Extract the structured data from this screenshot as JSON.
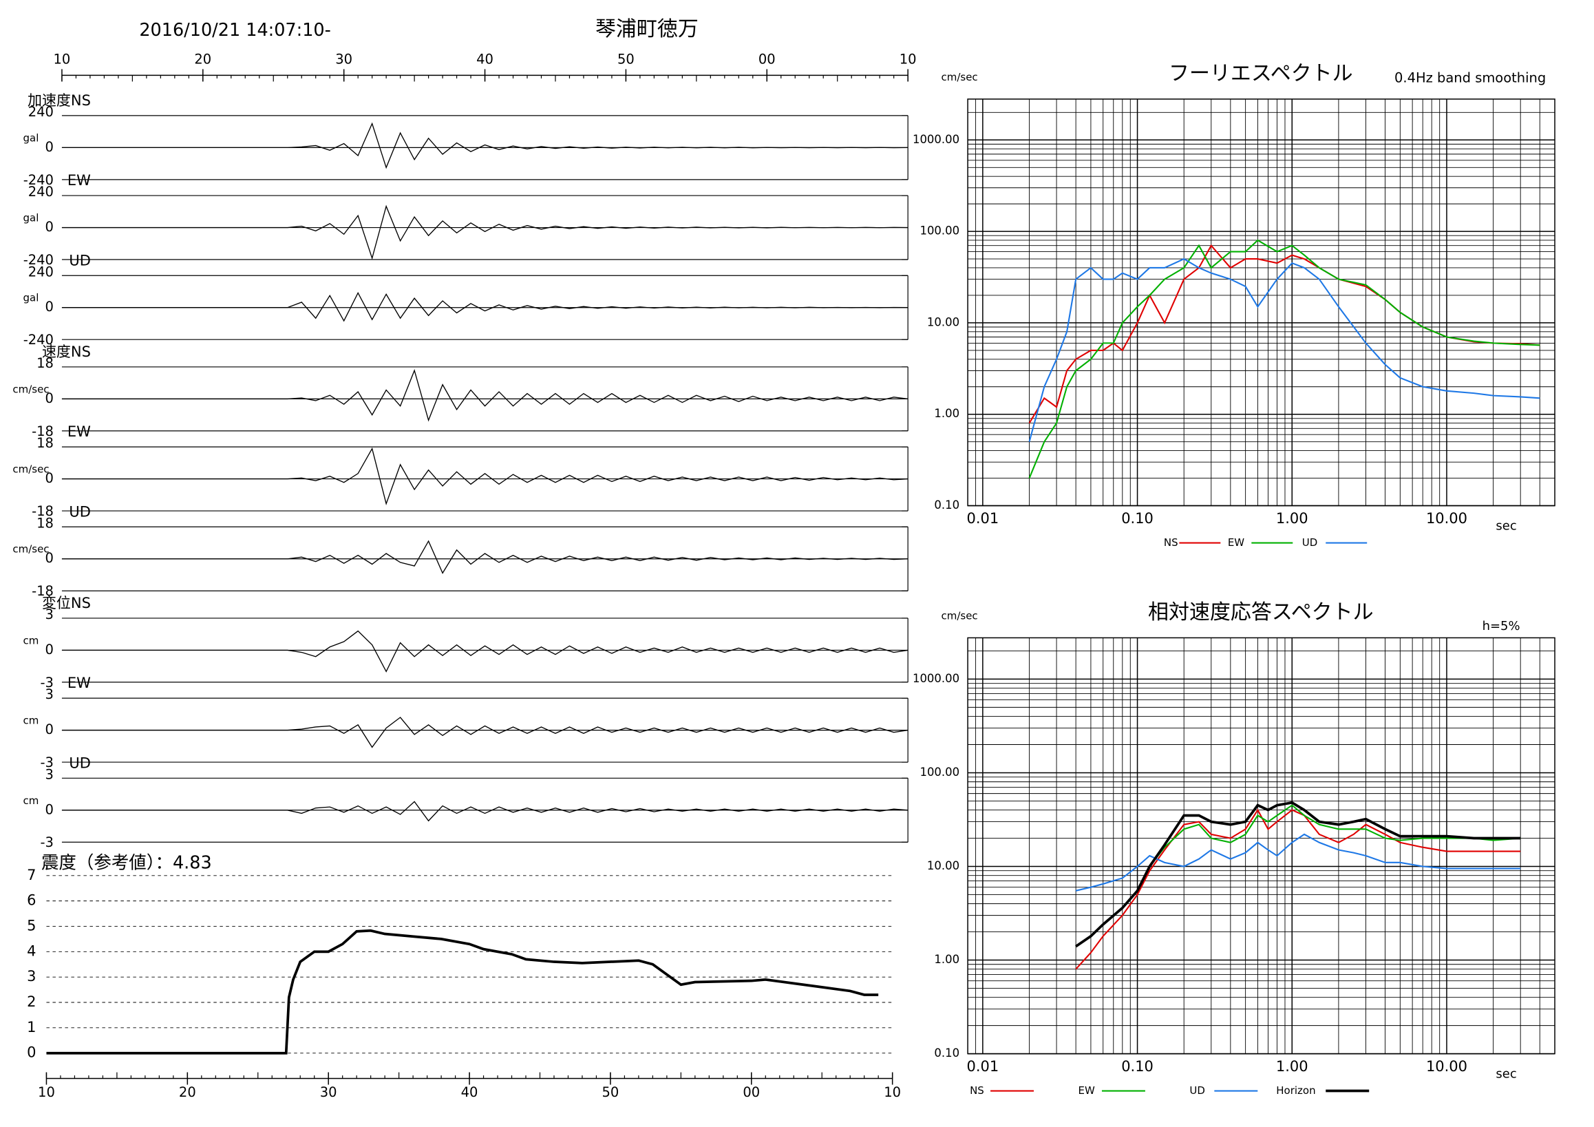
{
  "chart_data": [
    {
      "type": "waveform",
      "header": "2016/10/21 14:07:10-",
      "title": "琴浦町徳万",
      "xlim": [
        10,
        70
      ],
      "xticks": [
        10,
        20,
        30,
        40,
        50,
        {
          "value": 60,
          "label": "00"
        },
        {
          "value": 70,
          "label": "10"
        }
      ],
      "x": [
        10,
        26,
        27,
        28,
        29,
        30,
        31,
        32,
        33,
        34,
        35,
        36,
        37,
        38,
        39,
        40,
        41,
        42,
        43,
        44,
        45,
        46,
        47,
        48,
        49,
        50,
        51,
        52,
        53,
        54,
        55,
        56,
        57,
        58,
        59,
        60,
        61,
        62,
        63,
        64,
        65,
        66,
        67,
        68,
        69,
        70
      ],
      "panels": [
        {
          "label": "加速度NS",
          "unit": "gal",
          "ylim": [
            -240,
            240
          ],
          "yticks": [
            -240,
            0,
            240
          ],
          "values": [
            0,
            0,
            5,
            15,
            -20,
            30,
            -60,
            180,
            -150,
            110,
            -90,
            70,
            -50,
            35,
            -30,
            20,
            -15,
            12,
            -10,
            8,
            -6,
            6,
            -5,
            4,
            -4,
            3,
            -3,
            3,
            -2,
            2,
            -2,
            2,
            -2,
            2,
            -2,
            1,
            -1,
            1,
            -1,
            1,
            -1,
            1,
            -1,
            1,
            -1,
            0
          ]
        },
        {
          "label": "EW",
          "unit": "gal",
          "ylim": [
            -240,
            240
          ],
          "yticks": [
            -240,
            0,
            240
          ],
          "values": [
            0,
            0,
            10,
            -25,
            30,
            -50,
            90,
            -230,
            160,
            -100,
            80,
            -60,
            50,
            -40,
            35,
            -30,
            25,
            -20,
            15,
            -12,
            10,
            -8,
            7,
            -6,
            5,
            -5,
            4,
            -4,
            3,
            -3,
            3,
            -2,
            2,
            -2,
            2,
            -2,
            2,
            -1,
            1,
            -1,
            1,
            -1,
            1,
            -1,
            1,
            0
          ]
        },
        {
          "label": "UD",
          "unit": "gal",
          "ylim": [
            -240,
            240
          ],
          "yticks": [
            -240,
            0,
            240
          ],
          "values": [
            0,
            0,
            40,
            -80,
            90,
            -100,
            110,
            -90,
            100,
            -80,
            70,
            -60,
            50,
            -40,
            30,
            -25,
            20,
            -18,
            15,
            -12,
            10,
            -8,
            8,
            -6,
            6,
            -5,
            5,
            -4,
            4,
            -3,
            3,
            -3,
            3,
            -2,
            2,
            -2,
            2,
            -2,
            2,
            -1,
            1,
            -1,
            1,
            -1,
            1,
            0
          ]
        },
        {
          "label": "速度NS",
          "unit": "cm/sec",
          "ylim": [
            -18,
            18
          ],
          "yticks": [
            -18,
            0,
            18
          ],
          "values": [
            0,
            0,
            0.5,
            -1,
            2,
            -3,
            4,
            -9,
            5,
            -4,
            16,
            -12,
            8,
            -6,
            5,
            -4,
            4,
            -4,
            3,
            -3,
            3,
            -3,
            3,
            -2,
            3,
            -2,
            2,
            -2,
            2,
            -2,
            2,
            -1,
            1.5,
            -1.5,
            1.5,
            -1,
            1,
            -1,
            1,
            -1,
            1,
            -1,
            1,
            -1,
            1,
            0
          ]
        },
        {
          "label": "EW",
          "unit": "cm/sec",
          "ylim": [
            -18,
            18
          ],
          "yticks": [
            -18,
            0,
            18
          ],
          "values": [
            0,
            0,
            0.5,
            -1,
            1.5,
            -2,
            3,
            17,
            -14,
            8,
            -6,
            5,
            -4,
            4,
            -3,
            3,
            -3,
            2.5,
            -2,
            2,
            -2,
            2,
            -2,
            2,
            -1.5,
            1.5,
            -1.5,
            1.5,
            -1,
            1,
            -1,
            1,
            -1,
            1,
            -1,
            1,
            -1,
            0.8,
            -0.8,
            0.8,
            -0.5,
            0.5,
            -0.5,
            0.5,
            -0.5,
            0
          ]
        },
        {
          "label": "UD",
          "unit": "cm/sec",
          "ylim": [
            -18,
            18
          ],
          "yticks": [
            -18,
            0,
            18
          ],
          "values": [
            0,
            0,
            1,
            -1.5,
            2,
            -2.5,
            2,
            -3,
            3,
            -2,
            -4,
            10,
            -8,
            5,
            -3,
            3,
            -2,
            2,
            -2,
            1.5,
            -1.5,
            1.5,
            -1,
            1,
            -1,
            1,
            -1,
            1,
            -0.8,
            0.8,
            -0.8,
            0.8,
            -0.5,
            0.5,
            -0.5,
            0.5,
            -0.5,
            0.5,
            -0.3,
            0.3,
            -0.3,
            0.3,
            -0.3,
            0.3,
            -0.3,
            0
          ]
        },
        {
          "label": "変位NS",
          "unit": "cm",
          "ylim": [
            -3,
            3
          ],
          "yticks": [
            -3,
            0,
            3
          ],
          "values": [
            0,
            0,
            -0.2,
            -0.6,
            0.3,
            0.8,
            1.8,
            0.5,
            -2.0,
            0.7,
            -0.6,
            0.5,
            -0.5,
            0.5,
            -0.5,
            0.4,
            -0.4,
            0.5,
            -0.4,
            0.3,
            -0.4,
            0.4,
            -0.3,
            0.3,
            -0.3,
            0.3,
            -0.2,
            0.2,
            -0.2,
            0.3,
            -0.2,
            0.2,
            -0.2,
            0.2,
            -0.2,
            0.2,
            -0.2,
            0.2,
            -0.2,
            0.2,
            -0.2,
            0.2,
            -0.2,
            0.2,
            -0.2,
            0
          ]
        },
        {
          "label": "EW",
          "unit": "cm",
          "ylim": [
            -3,
            3
          ],
          "yticks": [
            -3,
            0,
            3
          ],
          "values": [
            0,
            0,
            0.1,
            0.3,
            0.4,
            -0.3,
            0.5,
            -1.6,
            0.2,
            1.2,
            -0.4,
            0.5,
            -0.5,
            0.4,
            -0.4,
            0.4,
            -0.3,
            0.3,
            -0.3,
            0.3,
            -0.3,
            0.3,
            -0.3,
            0.3,
            -0.2,
            0.2,
            -0.2,
            0.2,
            -0.2,
            0.2,
            -0.2,
            0.2,
            -0.2,
            0.2,
            -0.2,
            0.2,
            -0.2,
            0.2,
            -0.2,
            0.2,
            -0.2,
            0.2,
            -0.2,
            0.2,
            -0.2,
            0
          ]
        },
        {
          "label": "UD",
          "unit": "cm",
          "ylim": [
            -3,
            3
          ],
          "yticks": [
            -3,
            0,
            3
          ],
          "values": [
            0,
            0,
            -0.3,
            0.2,
            0.3,
            -0.2,
            0.4,
            -0.3,
            0.3,
            -0.4,
            0.8,
            -1.0,
            0.4,
            -0.3,
            0.3,
            -0.3,
            0.3,
            -0.2,
            0.2,
            -0.2,
            0.2,
            -0.2,
            0.2,
            -0.2,
            0.15,
            -0.15,
            0.15,
            -0.15,
            0.1,
            -0.1,
            0.1,
            -0.1,
            0.1,
            -0.1,
            0.1,
            -0.1,
            0.1,
            -0.1,
            0.1,
            -0.1,
            0.1,
            -0.1,
            0.1,
            -0.1,
            0.1,
            0
          ]
        }
      ]
    },
    {
      "type": "line",
      "title": "震度（参考値）：4.83",
      "color": "#000000",
      "xlim": [
        10,
        70
      ],
      "xticks": [
        10,
        20,
        30,
        40,
        50,
        {
          "value": 60,
          "label": "00"
        },
        {
          "value": 70,
          "label": "10"
        }
      ],
      "ylim": [
        -1,
        7.3
      ],
      "yticks": [
        0,
        1,
        2,
        3,
        4,
        5,
        6,
        7
      ],
      "grid": true,
      "x": [
        10,
        27,
        27.2,
        27.5,
        28,
        29,
        30,
        31,
        32,
        33,
        34,
        36,
        38,
        40,
        41,
        43,
        44,
        46,
        48,
        50,
        52,
        53,
        54,
        55,
        56,
        60,
        61,
        63,
        65,
        67,
        68,
        69
      ],
      "values": [
        0,
        0,
        2.2,
        2.9,
        3.6,
        4,
        4,
        4.3,
        4.8,
        4.83,
        4.7,
        4.6,
        4.5,
        4.3,
        4.1,
        3.9,
        3.7,
        3.6,
        3.55,
        3.6,
        3.65,
        3.5,
        3.1,
        2.7,
        2.8,
        2.85,
        2.9,
        2.75,
        2.6,
        2.45,
        2.3,
        2.3
      ]
    },
    {
      "type": "loglog",
      "title": "フーリエスペクトル",
      "subtitle": "0.4Hz band smoothing",
      "xlabel": "sec",
      "ylabel": "cm/sec",
      "log_x": true,
      "log_y": true,
      "grid": true,
      "minor_grid": true,
      "xlim": [
        0.008,
        50
      ],
      "xticks": [
        0.01,
        {
          "value": 0.1,
          "label": "0.10"
        },
        {
          "value": 1,
          "label": "1.00"
        },
        {
          "value": 10,
          "label": "10.00"
        }
      ],
      "ylim": [
        0.1,
        2800
      ],
      "yticks": [
        {
          "value": 0.1,
          "label": "0.10"
        },
        {
          "value": 1,
          "label": "1.00"
        },
        {
          "value": 10,
          "label": "10.00"
        },
        {
          "value": 100,
          "label": "100.00"
        },
        {
          "value": 1000,
          "label": "1000.00"
        }
      ],
      "x": [
        0.02,
        0.025,
        0.03,
        0.035,
        0.04,
        0.05,
        0.06,
        0.07,
        0.08,
        0.1,
        0.12,
        0.15,
        0.2,
        0.25,
        0.3,
        0.4,
        0.5,
        0.6,
        0.8,
        1,
        1.2,
        1.5,
        2,
        3,
        4,
        5,
        7,
        10,
        15,
        20,
        30,
        40
      ],
      "series": [
        {
          "name": "NS",
          "color": "#e00000",
          "values": [
            0.8,
            1.5,
            1.2,
            3,
            4,
            5,
            5,
            6,
            5,
            10,
            20,
            10,
            30,
            40,
            70,
            40,
            50,
            50,
            45,
            55,
            50,
            40,
            30,
            25,
            18,
            13,
            9,
            7,
            6.2,
            6,
            5.9,
            5.7
          ]
        },
        {
          "name": "EW",
          "color": "#00b000",
          "values": [
            0.2,
            0.5,
            0.8,
            2,
            3,
            4,
            6,
            6,
            10,
            15,
            20,
            30,
            40,
            70,
            40,
            60,
            60,
            80,
            60,
            70,
            55,
            40,
            30,
            26,
            18,
            13,
            9,
            7,
            6.3,
            6,
            5.8,
            5.7
          ]
        },
        {
          "name": "UD",
          "color": "#1e78e6",
          "values": [
            0.5,
            2,
            4,
            8,
            30,
            40,
            30,
            30,
            35,
            30,
            40,
            40,
            50,
            40,
            35,
            30,
            25,
            15,
            30,
            45,
            40,
            30,
            15,
            6,
            3.5,
            2.5,
            2,
            1.8,
            1.7,
            1.6,
            1.55,
            1.5
          ]
        }
      ]
    },
    {
      "type": "loglog",
      "title": "相対速度応答スペクトル",
      "annotation": "h=5%",
      "xlabel": "sec",
      "ylabel": "cm/sec",
      "log_x": true,
      "log_y": true,
      "grid": true,
      "minor_grid": true,
      "xlim": [
        0.008,
        50
      ],
      "xticks": [
        0.01,
        {
          "value": 0.1,
          "label": "0.10"
        },
        {
          "value": 1,
          "label": "1.00"
        },
        {
          "value": 10,
          "label": "10.00"
        }
      ],
      "ylim": [
        0.1,
        2760
      ],
      "yticks": [
        {
          "value": 0.1,
          "label": "0.10"
        },
        {
          "value": 1,
          "label": "1.00"
        },
        {
          "value": 10,
          "label": "10.00"
        },
        {
          "value": 100,
          "label": "100.00"
        },
        {
          "value": 1000,
          "label": "1000.00"
        }
      ],
      "x": [
        0.04,
        0.05,
        0.06,
        0.08,
        0.1,
        0.12,
        0.15,
        0.2,
        0.25,
        0.3,
        0.4,
        0.5,
        0.6,
        0.7,
        0.8,
        1,
        1.2,
        1.5,
        2,
        2.5,
        3,
        4,
        5,
        7,
        10,
        15,
        20,
        30
      ],
      "series": [
        {
          "name": "NS",
          "color": "#e00000",
          "values": [
            0.8,
            1.2,
            1.8,
            3,
            5,
            9,
            15,
            28,
            30,
            22,
            20,
            25,
            40,
            25,
            30,
            40,
            35,
            22,
            18,
            22,
            28,
            22,
            18,
            16,
            14.5,
            14.5,
            14.5,
            14.5
          ]
        },
        {
          "name": "EW",
          "color": "#00b000",
          "values": [
            1.4,
            1.8,
            2.4,
            3.6,
            5.5,
            10,
            16,
            25,
            28,
            20,
            18,
            22,
            35,
            30,
            35,
            45,
            35,
            28,
            25,
            25,
            25,
            20,
            19,
            20,
            20,
            20,
            19,
            20
          ]
        },
        {
          "name": "UD",
          "color": "#1e78e6",
          "values": [
            5.5,
            6,
            6.5,
            7.5,
            10,
            13,
            11,
            10,
            12,
            15,
            12,
            14,
            18,
            15,
            13,
            18,
            22,
            18,
            15,
            14,
            13,
            11,
            11,
            10,
            9.5,
            9.5,
            9.5,
            9.5
          ]
        },
        {
          "name": "Horizon",
          "color": "#000000",
          "values": [
            1.4,
            1.8,
            2.4,
            3.6,
            5.5,
            10,
            17,
            35,
            35,
            30,
            28,
            30,
            45,
            40,
            45,
            48,
            40,
            30,
            28,
            30,
            32,
            25,
            21,
            21,
            21,
            20,
            20,
            20
          ]
        }
      ]
    }
  ]
}
